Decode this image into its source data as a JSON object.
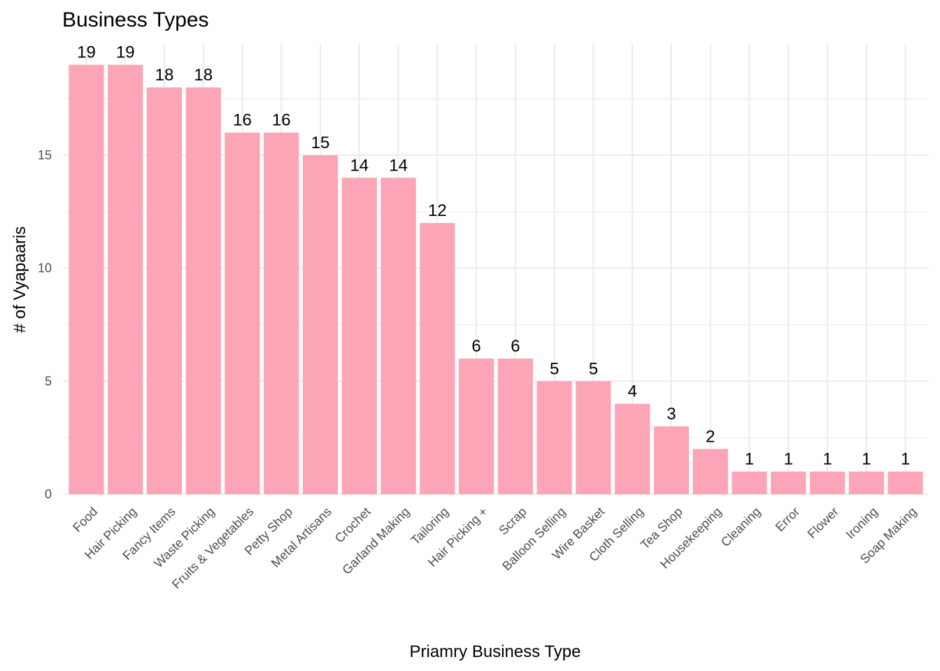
{
  "chart_data": {
    "type": "bar",
    "title": "Business Types",
    "xlabel": "Priamry Business Type",
    "ylabel": "# of Vyapaaris",
    "categories": [
      "Food",
      "Hair Picking",
      "Fancy Items",
      "Waste Picking",
      "Fruits & Vegetables",
      "Petty Shop",
      "Metal Artisans",
      "Crochet",
      "Garland Making",
      "Tailoring",
      "Hair Picking +",
      "Scrap",
      "Balloon Selling",
      "Wire Basket",
      "Cloth Selling",
      "Tea Shop",
      "Housekeeping",
      "Cleaning",
      "Error",
      "Flower",
      "Ironing",
      "Soap Making"
    ],
    "values": [
      19,
      19,
      18,
      18,
      16,
      16,
      15,
      14,
      14,
      12,
      6,
      6,
      5,
      5,
      4,
      3,
      2,
      1,
      1,
      1,
      1,
      1
    ],
    "ylim": [
      0,
      19.95
    ],
    "yticks": [
      0,
      5,
      10,
      15
    ],
    "grid": true,
    "legend": "none",
    "bar_color": "#fca5b6",
    "data_labels": true
  }
}
